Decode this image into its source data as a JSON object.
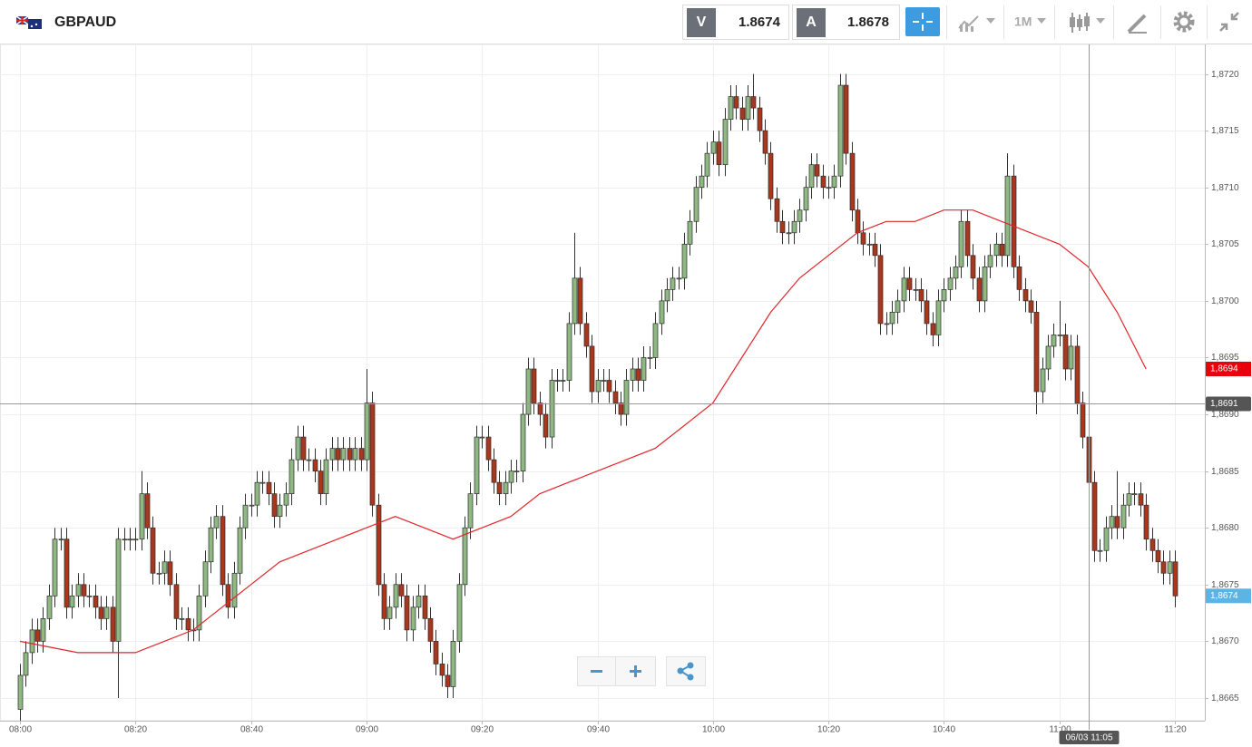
{
  "header": {
    "symbol": "GBPAUD",
    "sell_label": "V",
    "sell": "1.8674",
    "buy_label": "A",
    "buy": "1.8678",
    "timeframe": "1M"
  },
  "chart_data": {
    "type": "candlestick",
    "up_color": "#8fb883",
    "down_color": "#a8371d",
    "ma_color": "#e0262b",
    "ylim": [
      1.8663,
      1.87226
    ],
    "yticks": [
      {
        "value": 1.8665,
        "label": "1,8665"
      },
      {
        "value": 1.867,
        "label": "1,8670"
      },
      {
        "value": 1.8675,
        "label": "1,8675"
      },
      {
        "value": 1.868,
        "label": "1,8680"
      },
      {
        "value": 1.8685,
        "label": "1,8685"
      },
      {
        "value": 1.869,
        "label": "1,8690"
      },
      {
        "value": 1.8695,
        "label": "1,8695"
      },
      {
        "value": 1.87,
        "label": "1,8700"
      },
      {
        "value": 1.8705,
        "label": "1,8705"
      },
      {
        "value": 1.871,
        "label": "1,8710"
      },
      {
        "value": 1.8715,
        "label": "1,8715"
      },
      {
        "value": 1.872,
        "label": "1,8720"
      }
    ],
    "xticks": [
      "08:00",
      "08:20",
      "08:40",
      "09:00",
      "09:20",
      "09:40",
      "10:00",
      "10:20",
      "10:40",
      "11:00",
      "11:20"
    ],
    "grid": true,
    "open": [
      1.8664,
      1.8667,
      1.8669,
      1.8671,
      1.867,
      1.8672,
      1.8674,
      1.8679,
      1.8679,
      1.8673,
      1.8674,
      1.8675,
      1.8674,
      1.8674,
      1.8673,
      1.8672,
      1.8673,
      1.867,
      1.8679,
      1.8679,
      1.8679,
      1.8679,
      1.8683,
      1.868,
      1.8676,
      1.8676,
      1.8677,
      1.8675,
      1.8672,
      1.8672,
      1.8671,
      1.8671,
      1.8674,
      1.8677,
      1.868,
      1.8681,
      1.8675,
      1.8673,
      1.8676,
      1.868,
      1.8682,
      1.8682,
      1.8684,
      1.8684,
      1.8683,
      1.8681,
      1.8682,
      1.8683,
      1.8686,
      1.8688,
      1.8686,
      1.8686,
      1.8685,
      1.8683,
      1.8686,
      1.8687,
      1.8686,
      1.8687,
      1.8686,
      1.8687,
      1.8686,
      1.8691,
      1.8682,
      1.8675,
      1.8672,
      1.8673,
      1.8675,
      1.8674,
      1.8671,
      1.8673,
      1.8674,
      1.8672,
      1.867,
      1.8668,
      1.8667,
      1.8666,
      1.867,
      1.8675,
      1.868,
      1.8683,
      1.8688,
      1.8688,
      1.8686,
      1.8684,
      1.8683,
      1.8684,
      1.8685,
      1.8685,
      1.869,
      1.8694,
      1.8691,
      1.869,
      1.8688,
      1.8693,
      1.8693,
      1.8693,
      1.8698,
      1.8702,
      1.8698,
      1.8696,
      1.8692,
      1.8693,
      1.8693,
      1.8692,
      1.8691,
      1.869,
      1.8693,
      1.8694,
      1.8693,
      1.8695,
      1.8695,
      1.8698,
      1.87,
      1.8701,
      1.8702,
      1.8702,
      1.8705,
      1.8707,
      1.871,
      1.8711,
      1.8713,
      1.8714,
      1.8712,
      1.8716,
      1.8718,
      1.8717,
      1.8716,
      1.8718,
      1.8717,
      1.8715,
      1.8713,
      1.8709,
      1.8707,
      1.8706,
      1.8706,
      1.8707,
      1.8708,
      1.871,
      1.8712,
      1.8711,
      1.871,
      1.871,
      1.8711,
      1.8719,
      1.8713,
      1.8708,
      1.8706,
      1.8705,
      1.8705,
      1.8704,
      1.8698,
      1.8698,
      1.8699,
      1.87,
      1.8702,
      1.8701,
      1.8701,
      1.87,
      1.8698,
      1.8697,
      1.87,
      1.8701,
      1.8702,
      1.8703,
      1.8707,
      1.8704,
      1.8702,
      1.87,
      1.8703,
      1.8704,
      1.8705,
      1.8704,
      1.8711,
      1.8703,
      1.8701,
      1.87,
      1.8699,
      1.8692,
      1.8694,
      1.8696,
      1.8697,
      1.8697,
      1.8694,
      1.8696,
      1.8691,
      1.8688,
      1.8684,
      1.8678,
      1.8678,
      1.868,
      1.8681,
      1.868,
      1.8682,
      1.8683,
      1.8683,
      1.8682,
      1.8679,
      1.8678,
      1.8677,
      1.8676,
      1.8677
    ],
    "high": [
      1.8668,
      1.867,
      1.8672,
      1.8672,
      1.8673,
      1.8675,
      1.868,
      1.868,
      1.868,
      1.8675,
      1.8676,
      1.8676,
      1.8675,
      1.8675,
      1.8674,
      1.8674,
      1.8674,
      1.868,
      1.868,
      1.868,
      1.868,
      1.8685,
      1.8684,
      1.8681,
      1.8677,
      1.8678,
      1.8678,
      1.8676,
      1.8673,
      1.8673,
      1.8672,
      1.8675,
      1.8678,
      1.8681,
      1.8682,
      1.8682,
      1.8676,
      1.8677,
      1.8681,
      1.8683,
      1.8683,
      1.8685,
      1.8685,
      1.8685,
      1.8684,
      1.8683,
      1.8684,
      1.8687,
      1.8689,
      1.8689,
      1.8687,
      1.8687,
      1.8686,
      1.8687,
      1.8688,
      1.8688,
      1.8688,
      1.8688,
      1.8688,
      1.8688,
      1.8694,
      1.8692,
      1.8683,
      1.8676,
      1.8674,
      1.8676,
      1.8676,
      1.8675,
      1.8674,
      1.8675,
      1.8675,
      1.8673,
      1.8671,
      1.8669,
      1.8668,
      1.8671,
      1.8676,
      1.8681,
      1.8684,
      1.8689,
      1.8689,
      1.8689,
      1.8687,
      1.8685,
      1.8685,
      1.8686,
      1.8686,
      1.8691,
      1.8695,
      1.8695,
      1.8692,
      1.8691,
      1.8694,
      1.8694,
      1.8694,
      1.8699,
      1.8706,
      1.8703,
      1.8699,
      1.8697,
      1.8694,
      1.8694,
      1.8694,
      1.8693,
      1.8692,
      1.8694,
      1.8695,
      1.8695,
      1.8696,
      1.8696,
      1.8699,
      1.8701,
      1.8702,
      1.8703,
      1.8703,
      1.8706,
      1.8708,
      1.8711,
      1.8712,
      1.8714,
      1.8715,
      1.8715,
      1.8717,
      1.8719,
      1.8719,
      1.8718,
      1.8719,
      1.872,
      1.8718,
      1.8716,
      1.8714,
      1.871,
      1.8708,
      1.8707,
      1.8708,
      1.8709,
      1.8711,
      1.8713,
      1.8713,
      1.8712,
      1.8711,
      1.8712,
      1.872,
      1.872,
      1.8714,
      1.8709,
      1.8707,
      1.8706,
      1.8706,
      1.8705,
      1.8699,
      1.87,
      1.8701,
      1.8703,
      1.8703,
      1.8702,
      1.8702,
      1.8701,
      1.8699,
      1.8701,
      1.8702,
      1.8703,
      1.8704,
      1.8708,
      1.8708,
      1.8705,
      1.8703,
      1.8704,
      1.8705,
      1.8706,
      1.8706,
      1.8713,
      1.8712,
      1.8704,
      1.8702,
      1.8701,
      1.87,
      1.8695,
      1.8697,
      1.8698,
      1.87,
      1.8698,
      1.8697,
      1.8697,
      1.8692,
      1.8689,
      1.8685,
      1.8679,
      1.8681,
      1.8682,
      1.8685,
      1.8683,
      1.8684,
      1.8684,
      1.8684,
      1.8683,
      1.868,
      1.8679,
      1.8678,
      1.8678,
      1.8678
    ],
    "low": [
      1.8663,
      1.8666,
      1.8668,
      1.8669,
      1.8669,
      1.8671,
      1.8673,
      1.8678,
      1.8672,
      1.8672,
      1.8673,
      1.8673,
      1.8673,
      1.8672,
      1.8671,
      1.8671,
      1.8669,
      1.8665,
      1.8678,
      1.8678,
      1.8678,
      1.8678,
      1.8679,
      1.8675,
      1.8675,
      1.8675,
      1.8674,
      1.8671,
      1.8671,
      1.867,
      1.867,
      1.867,
      1.8673,
      1.8676,
      1.8679,
      1.8674,
      1.8672,
      1.8672,
      1.8675,
      1.8679,
      1.8681,
      1.8681,
      1.8683,
      1.8682,
      1.868,
      1.868,
      1.8681,
      1.8682,
      1.8685,
      1.8685,
      1.8685,
      1.8684,
      1.8682,
      1.8682,
      1.8685,
      1.8685,
      1.8685,
      1.8685,
      1.8685,
      1.8685,
      1.8685,
      1.8681,
      1.8674,
      1.8671,
      1.8671,
      1.8672,
      1.8673,
      1.867,
      1.867,
      1.8672,
      1.8671,
      1.8669,
      1.8667,
      1.8666,
      1.8665,
      1.8665,
      1.8669,
      1.8674,
      1.8679,
      1.8682,
      1.8687,
      1.8685,
      1.8683,
      1.8682,
      1.8682,
      1.8683,
      1.8684,
      1.8684,
      1.8689,
      1.869,
      1.8689,
      1.8687,
      1.8687,
      1.8692,
      1.8692,
      1.8692,
      1.8697,
      1.8697,
      1.8695,
      1.8691,
      1.8691,
      1.8692,
      1.8691,
      1.869,
      1.8689,
      1.8689,
      1.8692,
      1.8692,
      1.8692,
      1.8694,
      1.8694,
      1.8697,
      1.8699,
      1.87,
      1.8701,
      1.8701,
      1.8704,
      1.8706,
      1.8709,
      1.871,
      1.8712,
      1.8711,
      1.8711,
      1.8715,
      1.8716,
      1.8715,
      1.8715,
      1.8716,
      1.8714,
      1.8712,
      1.8708,
      1.8706,
      1.8705,
      1.8705,
      1.8705,
      1.8706,
      1.8707,
      1.8709,
      1.871,
      1.8709,
      1.8709,
      1.8709,
      1.871,
      1.8712,
      1.8707,
      1.8705,
      1.8704,
      1.8704,
      1.8703,
      1.8697,
      1.8697,
      1.8697,
      1.8698,
      1.8699,
      1.87,
      1.87,
      1.8699,
      1.8697,
      1.8696,
      1.8696,
      1.8699,
      1.87,
      1.8701,
      1.8702,
      1.8703,
      1.8701,
      1.8699,
      1.8699,
      1.8702,
      1.8703,
      1.8703,
      1.8703,
      1.8702,
      1.87,
      1.8699,
      1.8698,
      1.869,
      1.8691,
      1.8693,
      1.8695,
      1.8696,
      1.8693,
      1.8693,
      1.869,
      1.8687,
      1.8683,
      1.8677,
      1.8677,
      1.8677,
      1.8679,
      1.8679,
      1.8679,
      1.8681,
      1.8682,
      1.8681,
      1.8678,
      1.8677,
      1.8676,
      1.8675,
      1.8675,
      1.8673
    ],
    "close": [
      1.8667,
      1.8669,
      1.8671,
      1.867,
      1.8672,
      1.8674,
      1.8679,
      1.8679,
      1.8673,
      1.8674,
      1.8675,
      1.8674,
      1.8674,
      1.8673,
      1.8672,
      1.8673,
      1.867,
      1.8679,
      1.8679,
      1.8679,
      1.8679,
      1.8683,
      1.868,
      1.8676,
      1.8676,
      1.8677,
      1.8675,
      1.8672,
      1.8672,
      1.8671,
      1.8671,
      1.8674,
      1.8677,
      1.868,
      1.8681,
      1.8675,
      1.8673,
      1.8676,
      1.868,
      1.8682,
      1.8682,
      1.8684,
      1.8684,
      1.8683,
      1.8681,
      1.8682,
      1.8683,
      1.8686,
      1.8688,
      1.8686,
      1.8686,
      1.8685,
      1.8683,
      1.8686,
      1.8687,
      1.8686,
      1.8687,
      1.8686,
      1.8687,
      1.8686,
      1.8691,
      1.8682,
      1.8675,
      1.8672,
      1.8673,
      1.8675,
      1.8674,
      1.8671,
      1.8673,
      1.8674,
      1.8672,
      1.867,
      1.8668,
      1.8667,
      1.8666,
      1.867,
      1.8675,
      1.868,
      1.8683,
      1.8688,
      1.8688,
      1.8686,
      1.8684,
      1.8683,
      1.8684,
      1.8685,
      1.8685,
      1.869,
      1.8694,
      1.8691,
      1.869,
      1.8688,
      1.8693,
      1.8693,
      1.8693,
      1.8698,
      1.8702,
      1.8698,
      1.8696,
      1.8692,
      1.8693,
      1.8693,
      1.8692,
      1.8691,
      1.869,
      1.8693,
      1.8694,
      1.8693,
      1.8695,
      1.8695,
      1.8698,
      1.87,
      1.8701,
      1.8702,
      1.8702,
      1.8705,
      1.8707,
      1.871,
      1.8711,
      1.8713,
      1.8714,
      1.8712,
      1.8716,
      1.8718,
      1.8717,
      1.8716,
      1.8718,
      1.8717,
      1.8715,
      1.8713,
      1.8709,
      1.8707,
      1.8706,
      1.8706,
      1.8707,
      1.8708,
      1.871,
      1.8712,
      1.8711,
      1.871,
      1.871,
      1.8711,
      1.8719,
      1.8713,
      1.8708,
      1.8706,
      1.8705,
      1.8705,
      1.8704,
      1.8698,
      1.8698,
      1.8699,
      1.87,
      1.8702,
      1.8701,
      1.8701,
      1.87,
      1.8698,
      1.8697,
      1.87,
      1.8701,
      1.8702,
      1.8703,
      1.8707,
      1.8704,
      1.8702,
      1.87,
      1.8703,
      1.8704,
      1.8705,
      1.8704,
      1.8711,
      1.8703,
      1.8701,
      1.87,
      1.8699,
      1.8692,
      1.8694,
      1.8696,
      1.8697,
      1.8697,
      1.8694,
      1.8696,
      1.8691,
      1.8688,
      1.8684,
      1.8678,
      1.8678,
      1.868,
      1.8681,
      1.868,
      1.8682,
      1.8683,
      1.8683,
      1.8682,
      1.8679,
      1.8678,
      1.8677,
      1.8676,
      1.8677,
      1.8674
    ],
    "ma": [
      1.867,
      1.86695,
      1.8669,
      1.8669,
      1.8669,
      1.867,
      1.8671,
      1.8673,
      1.8675,
      1.8677,
      1.8678,
      1.8679,
      1.868,
      1.8681,
      1.868,
      1.8679,
      1.868,
      1.8681,
      1.8683,
      1.8684,
      1.8685,
      1.8686,
      1.8687,
      1.8689,
      1.8691,
      1.8695,
      1.8699,
      1.8702,
      1.8704,
      1.8706,
      1.8707,
      1.8707,
      1.8708,
      1.8708,
      1.8707,
      1.8706,
      1.8705,
      1.8703,
      1.8699,
      1.8694
    ],
    "crosshair": {
      "value": 1.8691,
      "label": "1,8691",
      "time": "06/03 11:05"
    },
    "price_tags": [
      {
        "value": 1.8694,
        "label": "1,8694",
        "color": "#e8000b"
      },
      {
        "value": 1.8674,
        "label": "1,8674",
        "color": "#5db4e3"
      }
    ]
  }
}
